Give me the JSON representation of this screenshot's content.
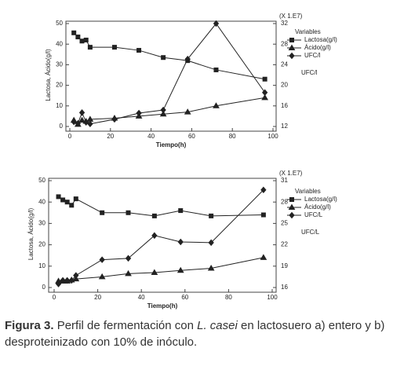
{
  "chart_data": [
    {
      "type": "line",
      "x_label": "Tiempo(h)",
      "y_label": "Lactosa, Ácido(g/l)",
      "y2_note": "(X 1.E7)",
      "legend_title": "Variables",
      "side_label": "UFC/l",
      "x": [
        2,
        4,
        6,
        8,
        10,
        22,
        34,
        46,
        58,
        72,
        96
      ],
      "xlim": [
        0,
        100
      ],
      "xticks": [
        0,
        20,
        40,
        60,
        80,
        100
      ],
      "ylim": [
        0,
        50
      ],
      "yticks": [
        0,
        10,
        20,
        30,
        40,
        50
      ],
      "y2lim": [
        12,
        32
      ],
      "y2ticks": [
        12,
        16,
        20,
        24,
        28,
        32
      ],
      "series": [
        {
          "name": "Lactosa(g/l)",
          "color": "#222222",
          "marker": "square",
          "values": [
            45.5,
            43.5,
            41.5,
            42,
            38.5,
            38.5,
            37,
            33.5,
            32,
            27.5,
            23
          ]
        },
        {
          "name": "Ácido(g/l)",
          "color": "#222222",
          "marker": "triangle",
          "values": [
            3,
            1,
            3,
            2.5,
            3.5,
            4,
            5,
            6,
            7,
            10,
            14
          ]
        },
        {
          "name": "UFC/l",
          "color": "#222222",
          "marker": "diamond",
          "axis": "y2",
          "values": [
            12.9,
            12.6,
            14.7,
            12.8,
            12.5,
            13.4,
            14.6,
            15.2,
            25.1,
            32,
            18.6
          ]
        }
      ]
    },
    {
      "type": "line",
      "x_label": "Tiempo(h)",
      "y_label": "Lactosa, Ácido(g/l)",
      "y2_note": "(X 1.E7)",
      "legend_title": "Variables",
      "side_label": "UFC/L",
      "x": [
        2,
        4,
        6,
        8,
        10,
        22,
        34,
        46,
        58,
        72,
        96
      ],
      "xlim": [
        0,
        100
      ],
      "xticks": [
        0,
        20,
        40,
        60,
        80,
        100
      ],
      "ylim": [
        0,
        50
      ],
      "yticks": [
        0,
        10,
        20,
        30,
        40,
        50
      ],
      "y2lim": [
        16,
        31
      ],
      "y2ticks": [
        16,
        19,
        22,
        25,
        28,
        31
      ],
      "series": [
        {
          "name": "Lactosa(g/l)",
          "color": "#222222",
          "marker": "square",
          "values": [
            42.5,
            41,
            40,
            38.5,
            41.5,
            35,
            35,
            33.5,
            36,
            33.5,
            34
          ]
        },
        {
          "name": "Ácido(g/l)",
          "color": "#222222",
          "marker": "triangle",
          "values": [
            3,
            3,
            3,
            3.5,
            4,
            5,
            6.5,
            7,
            8,
            9,
            14
          ]
        },
        {
          "name": "UFC/L",
          "color": "#222222",
          "marker": "diamond",
          "axis": "y2",
          "values": [
            16.5,
            17,
            17,
            17,
            17.7,
            19.9,
            20.1,
            23.3,
            22.4,
            22.3,
            29.7
          ]
        }
      ]
    }
  ],
  "caption": {
    "label": "Figura 3.",
    "parts": [
      "Perfil de fermentación con ",
      "L. casei",
      " en lactosuero a) entero y b) desproteinizado con 10% de inóculo."
    ]
  }
}
